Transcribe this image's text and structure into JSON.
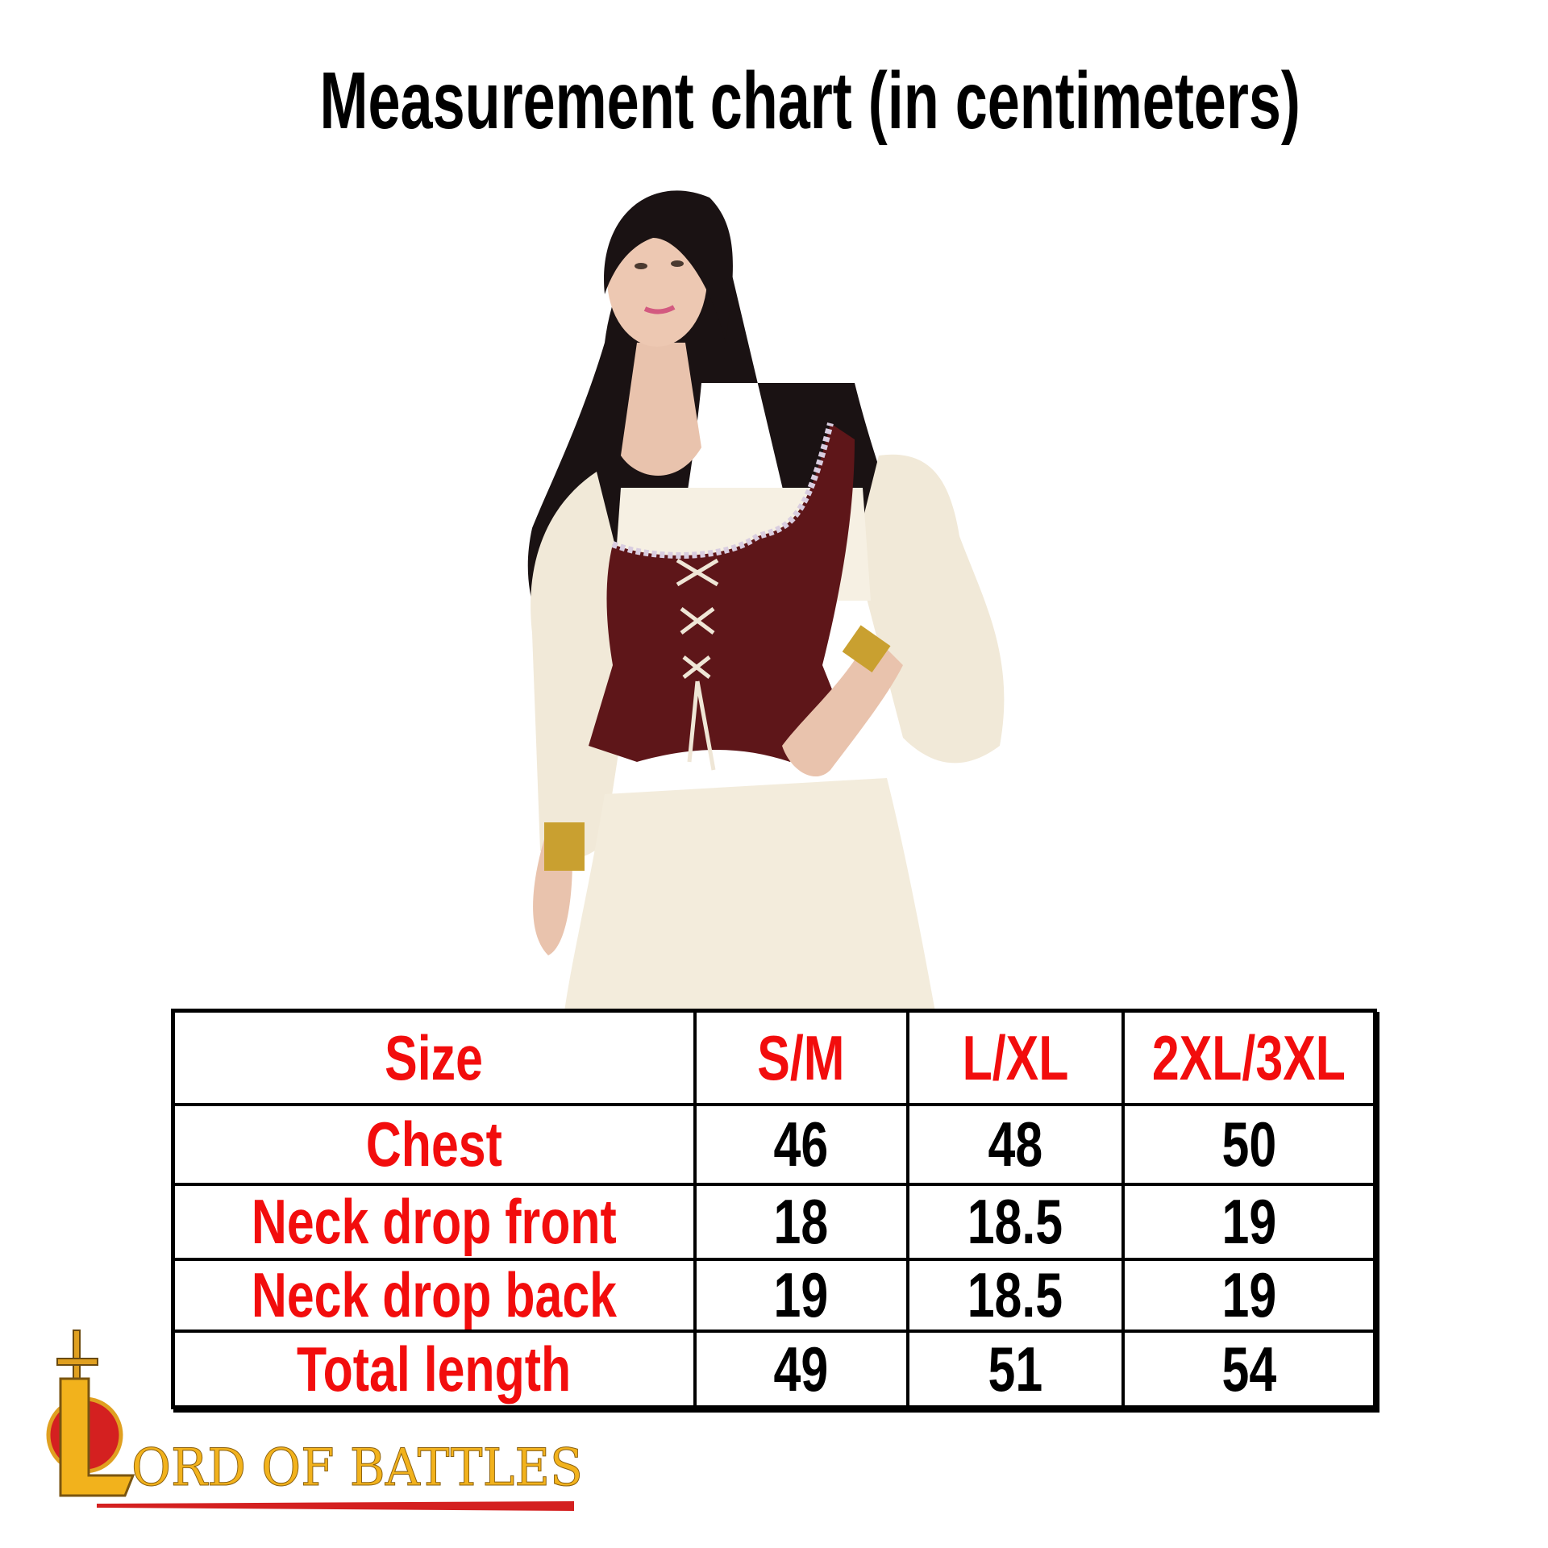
{
  "title": "Measurement chart (in centimeters)",
  "table": {
    "headers": [
      "Size",
      "S/M",
      "L/XL",
      "2XL/3XL"
    ],
    "rows": [
      {
        "label": "Chest",
        "values": [
          "46",
          "48",
          "50"
        ]
      },
      {
        "label": "Neck drop front",
        "values": [
          "18",
          "18.5",
          "19"
        ]
      },
      {
        "label": "Neck drop back",
        "values": [
          "19",
          "18.5",
          "19"
        ]
      },
      {
        "label": "Total length",
        "values": [
          "49",
          "51",
          "54"
        ]
      }
    ]
  },
  "logo": {
    "text": "LORD OF BATTLES"
  },
  "colors": {
    "label_red": "#f20d0d",
    "garment_bodice": "#5e1619",
    "garment_blouse": "#f3ecdc",
    "logo_gold": "#f2b21c",
    "logo_red": "#d42020"
  }
}
